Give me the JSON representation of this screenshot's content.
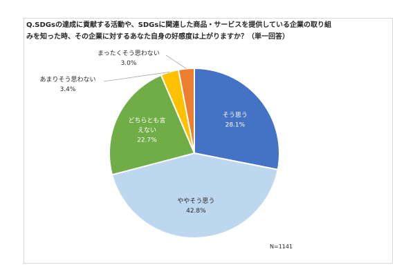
{
  "title_lines": [
    "Q.SDGsの達成に貢献する活動や、SDGsに関連した商品・サービスを提供している企業の取り組",
    "みを知った時、その企業に対するあなた自身の好感度は上がりますか？（単一回答）"
  ],
  "sample_note": "N=1141",
  "chart_data": {
    "type": "pie",
    "title": "Q.SDGsの達成に貢献する活動や、SDGsに関連した商品・サービスを提供している企業の取り組みを知った時、その企業に対するあなた自身の好感度は上がりますか？（単一回答）",
    "start": "12 o'clock",
    "direction": "clockwise",
    "slices": [
      {
        "label": "そう思う",
        "label_lines": [
          "そう思う"
        ],
        "value": 28.1,
        "value_label": "28.1%",
        "color": "#4472C4",
        "label_position": "inside"
      },
      {
        "label": "ややそう思う",
        "label_lines": [
          "ややそう思う"
        ],
        "value": 42.8,
        "value_label": "42.8%",
        "color": "#BDD7EE",
        "label_position": "inside"
      },
      {
        "label": "どちらとも言えない",
        "label_lines": [
          "どちらとも言",
          "えない"
        ],
        "value": 22.7,
        "value_label": "22.7%",
        "color": "#70AD47",
        "label_position": "inside"
      },
      {
        "label": "あまりそう思わない",
        "label_lines": [
          "あまりそう思わない"
        ],
        "value": 3.4,
        "value_label": "3.4%",
        "color": "#FFC000",
        "label_position": "outside"
      },
      {
        "label": "まったくそう思わない",
        "label_lines": [
          "まったくそう思わない"
        ],
        "value": 3.0,
        "value_label": "3.0%",
        "color": "#ED7D31",
        "label_position": "outside"
      }
    ]
  }
}
